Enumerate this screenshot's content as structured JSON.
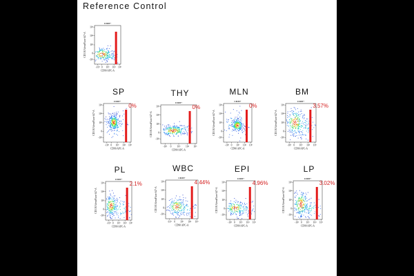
{
  "title": "Reference Control",
  "chart_data": {
    "type": "scatter",
    "subtype": "flow-cytometry-density",
    "gate_population": "CD45+",
    "xlabel": "CD90 APC-A",
    "ylabel": "CD338 AlexaFluor 647-A",
    "x_ticks": [
      "-10³",
      "0",
      "10³",
      "10⁴",
      "10⁵"
    ],
    "y_ticks": [
      "-10³",
      "0",
      "10³",
      "10⁴",
      "10⁵"
    ],
    "colors": {
      "gate": "#e31b1b",
      "percent": "#d42020",
      "density_low": "#1428c8",
      "density_high": "#e02010"
    },
    "panels": [
      {
        "id": "reference",
        "label": "",
        "percent": ""
      },
      {
        "id": "sp",
        "label": "SP",
        "percent": "0%"
      },
      {
        "id": "thy",
        "label": "THY",
        "percent": "0%"
      },
      {
        "id": "mln",
        "label": "MLN",
        "percent": "0%"
      },
      {
        "id": "bm",
        "label": "BM",
        "percent": "3.57%"
      },
      {
        "id": "pl",
        "label": "PL",
        "percent": "2.1%"
      },
      {
        "id": "wbc",
        "label": "WBC",
        "percent": "4.44%"
      },
      {
        "id": "epi",
        "label": "EPI",
        "percent": "4.96%"
      },
      {
        "id": "lp",
        "label": "LP",
        "percent": "3.02%"
      }
    ]
  }
}
